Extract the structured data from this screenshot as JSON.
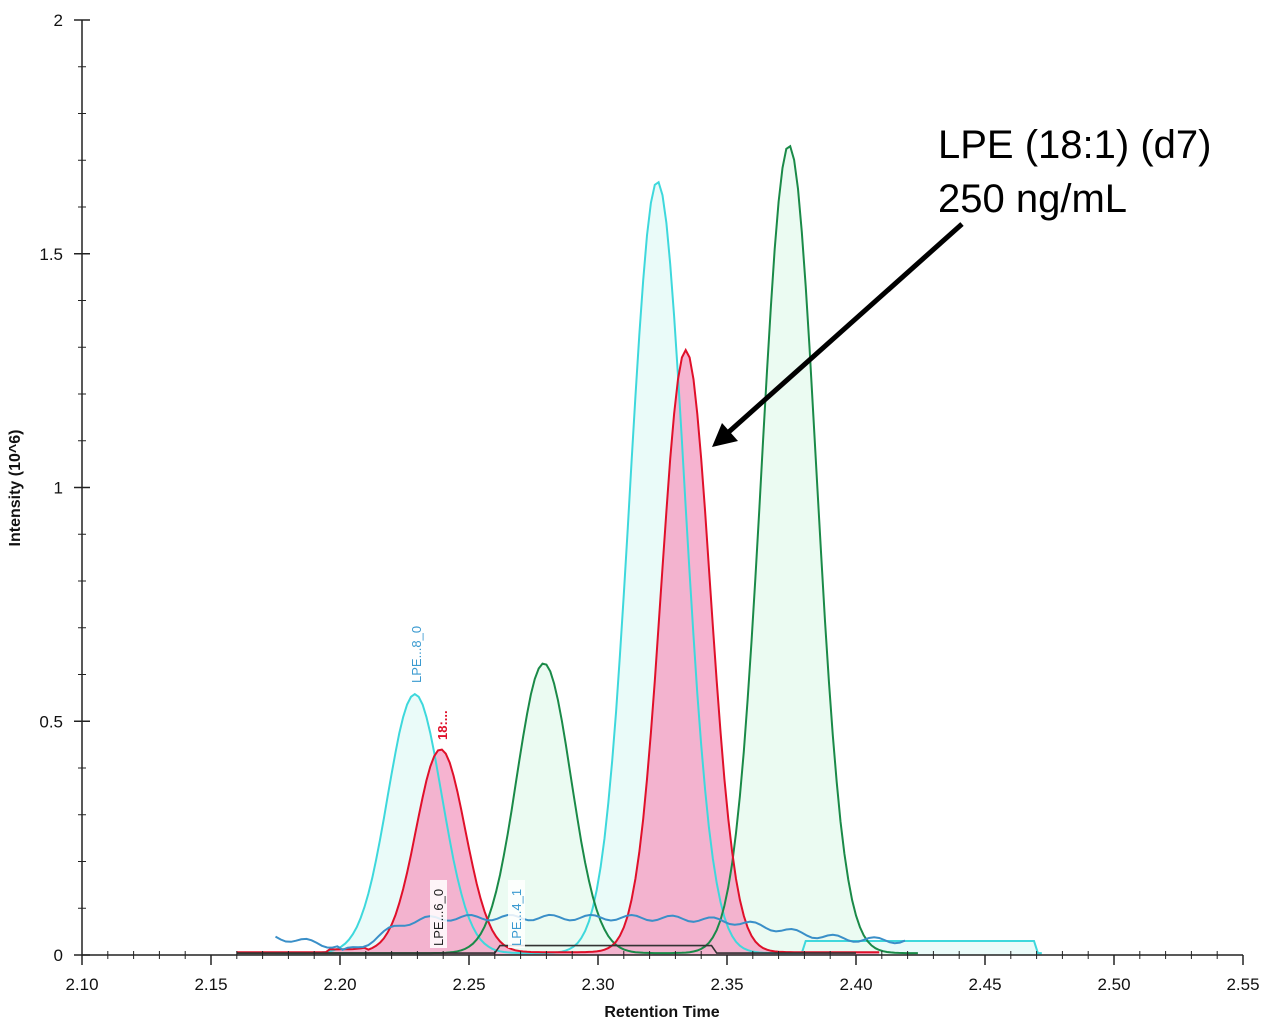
{
  "chart_data": {
    "type": "line",
    "subtype": "chromatogram (filled peaks)",
    "title": "",
    "xlabel": "Retention Time",
    "ylabel": "Intensity (10^6)",
    "xlim": [
      2.1,
      2.55
    ],
    "ylim": [
      0,
      2
    ],
    "x_ticks": [
      "2.10",
      "2.15",
      "2.20",
      "2.25",
      "2.30",
      "2.35",
      "2.40",
      "2.45",
      "2.50",
      "2.55"
    ],
    "y_ticks": [
      "0",
      "0.5",
      "1",
      "1.5",
      "2"
    ],
    "grid": false,
    "legend": "none",
    "series": [
      {
        "name": "LPE...8_0 (cyan)",
        "color": "#3ed8dc",
        "fill": "#e8fbf8",
        "peaks": [
          {
            "rt": 2.229,
            "intensity": 0.554
          },
          {
            "rt": 2.323,
            "intensity": 1.651
          }
        ]
      },
      {
        "name": "18:... (red)",
        "color": "#e0102a",
        "fill": "#f4a6c8",
        "peaks": [
          {
            "rt": 2.239,
            "intensity": 0.434
          },
          {
            "rt": 2.334,
            "intensity": 1.288
          }
        ]
      },
      {
        "name": "LPE...4_1 (green)",
        "color": "#1a8a48",
        "fill": "#e9fbf1",
        "peaks": [
          {
            "rt": 2.279,
            "intensity": 0.62
          },
          {
            "rt": 2.374,
            "intensity": 1.728
          }
        ]
      },
      {
        "name": "LPE...6_0 (blue baseline)",
        "color": "#3a8fc8",
        "fill": "none",
        "peaks": [
          {
            "rt": 2.26,
            "intensity": 0.085
          }
        ]
      },
      {
        "name": "dark baseline trace",
        "color": "#333333",
        "fill": "none",
        "peaks": [
          {
            "rt": 2.3,
            "intensity": 0.02
          }
        ]
      }
    ],
    "peak_labels": [
      {
        "text": "LPE...8_0",
        "rt": 2.229,
        "color": "#3a9ad0",
        "rotated": true
      },
      {
        "text": "18:...",
        "rt": 2.239,
        "color": "#e0102a",
        "rotated": true,
        "bold": true
      },
      {
        "text": "LPE...6_0",
        "rt": 2.24,
        "color": "#222222",
        "rotated": true,
        "boxed": true
      },
      {
        "text": "LPE...4_1",
        "rt": 2.27,
        "color": "#3a9ad0",
        "rotated": true,
        "boxed": true
      }
    ],
    "annotations": [
      {
        "text": "LPE (18:1) (d7)\n250 ng/mL",
        "arrow_to": {
          "rt": 2.336,
          "intensity": 1.09
        }
      }
    ]
  },
  "annotation": {
    "line1": "LPE (18:1) (d7)",
    "line2": "250 ng/mL"
  },
  "axes": {
    "xlabel": "Retention Time",
    "ylabel": "Intensity (10^6)"
  }
}
